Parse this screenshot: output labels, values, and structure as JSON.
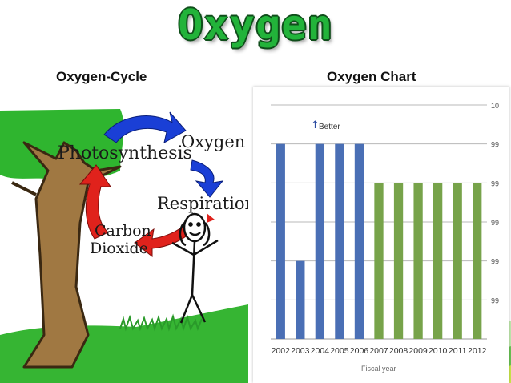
{
  "title": "Oxygen",
  "left_heading": "Oxygen-Cycle",
  "right_heading": "Oxygen Chart",
  "cycle": {
    "photosynthesis": "Photosynthesis",
    "oxygen": "Oxygen",
    "respiration": "Respiration",
    "carbon": "Carbon",
    "dioxide": "Dioxide"
  },
  "colors": {
    "title": "#22b33a",
    "blue_bar": "#4a6fb5",
    "green_bar": "#77a34a",
    "arrow_blue": "#1a3fd6",
    "arrow_red": "#e0221c"
  },
  "chart_data": {
    "type": "bar",
    "categories": [
      "2002",
      "2003",
      "2004",
      "2005",
      "2006",
      "2007",
      "2008",
      "2009",
      "2010",
      "2011",
      "2012"
    ],
    "values": [
      5,
      2,
      5,
      5,
      5,
      4,
      4,
      4,
      4,
      4,
      4
    ],
    "series_colors": [
      "#4a6fb5",
      "#4a6fb5",
      "#4a6fb5",
      "#4a6fb5",
      "#4a6fb5",
      "#77a34a",
      "#77a34a",
      "#77a34a",
      "#77a34a",
      "#77a34a",
      "#77a34a"
    ],
    "ylim": [
      0,
      6
    ],
    "y_tick_labels": [
      "99",
      "99",
      "99",
      "99",
      "99",
      "10"
    ],
    "annotation": "Better",
    "xlabel": "Fiscal year",
    "grid": true
  }
}
